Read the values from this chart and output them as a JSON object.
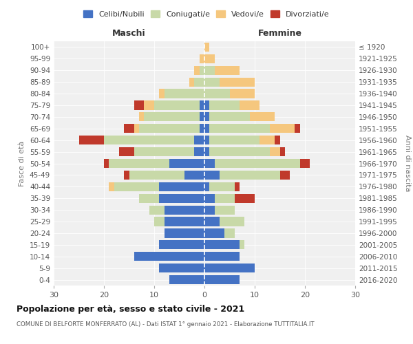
{
  "age_groups": [
    "0-4",
    "5-9",
    "10-14",
    "15-19",
    "20-24",
    "25-29",
    "30-34",
    "35-39",
    "40-44",
    "45-49",
    "50-54",
    "55-59",
    "60-64",
    "65-69",
    "70-74",
    "75-79",
    "80-84",
    "85-89",
    "90-94",
    "95-99",
    "100+"
  ],
  "birth_years": [
    "2016-2020",
    "2011-2015",
    "2006-2010",
    "2001-2005",
    "1996-2000",
    "1991-1995",
    "1986-1990",
    "1981-1985",
    "1976-1980",
    "1971-1975",
    "1966-1970",
    "1961-1965",
    "1956-1960",
    "1951-1955",
    "1946-1950",
    "1941-1945",
    "1936-1940",
    "1931-1935",
    "1926-1930",
    "1921-1925",
    "≤ 1920"
  ],
  "males": {
    "celibi": [
      7,
      9,
      14,
      9,
      8,
      8,
      8,
      9,
      9,
      4,
      7,
      2,
      2,
      1,
      1,
      1,
      0,
      0,
      0,
      0,
      0
    ],
    "coniugati": [
      0,
      0,
      0,
      0,
      0,
      2,
      3,
      4,
      9,
      11,
      12,
      12,
      18,
      12,
      11,
      9,
      8,
      2,
      1,
      0,
      0
    ],
    "vedovi": [
      0,
      0,
      0,
      0,
      0,
      0,
      0,
      0,
      1,
      0,
      0,
      0,
      0,
      1,
      1,
      2,
      1,
      1,
      1,
      1,
      0
    ],
    "divorziati": [
      0,
      0,
      0,
      0,
      0,
      0,
      0,
      0,
      0,
      1,
      1,
      3,
      5,
      2,
      0,
      2,
      0,
      0,
      0,
      0,
      0
    ]
  },
  "females": {
    "nubili": [
      7,
      10,
      7,
      7,
      4,
      3,
      2,
      2,
      1,
      3,
      2,
      1,
      1,
      1,
      1,
      1,
      0,
      0,
      0,
      0,
      0
    ],
    "coniugate": [
      0,
      0,
      0,
      1,
      2,
      5,
      4,
      4,
      5,
      12,
      17,
      12,
      10,
      12,
      8,
      6,
      5,
      3,
      2,
      0,
      0
    ],
    "vedove": [
      0,
      0,
      0,
      0,
      0,
      0,
      0,
      0,
      0,
      0,
      0,
      2,
      3,
      5,
      5,
      4,
      5,
      7,
      5,
      2,
      1
    ],
    "divorziate": [
      0,
      0,
      0,
      0,
      0,
      0,
      0,
      4,
      1,
      2,
      2,
      1,
      1,
      1,
      0,
      0,
      0,
      0,
      0,
      0,
      0
    ]
  },
  "colors": {
    "celibi": "#4472c4",
    "coniugati": "#c8d9a8",
    "vedovi": "#f5c77e",
    "divorziati": "#c0392b"
  },
  "xlim": 30,
  "title": "Popolazione per età, sesso e stato civile - 2021",
  "subtitle": "COMUNE DI BELFORTE MONFERRATO (AL) - Dati ISTAT 1° gennaio 2021 - Elaborazione TUTTITALIA.IT",
  "legend_labels": [
    "Celibi/Nubili",
    "Coniugati/e",
    "Vedovi/e",
    "Divorziati/e"
  ],
  "legend_colors": [
    "#4472c4",
    "#c8d9a8",
    "#f5c77e",
    "#c0392b"
  ],
  "ylabel_left": "Fasce di età",
  "ylabel_right": "Anni di nascita",
  "xlabel_left": "Maschi",
  "xlabel_right": "Femmine",
  "bg_color": "#f0f0f0"
}
